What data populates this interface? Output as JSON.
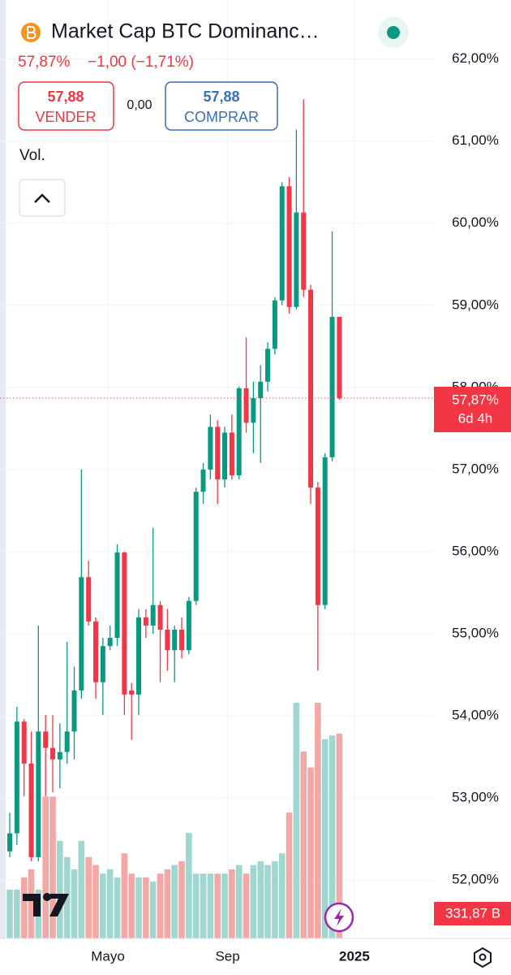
{
  "header": {
    "title": "Market Cap BTC Dominanc…",
    "price": "57,87%",
    "change": "−1,00 (−1,71%)"
  },
  "trade": {
    "sell": {
      "price": "57,88",
      "label": "VENDER"
    },
    "spread": "0,00",
    "buy": {
      "price": "57,88",
      "label": "COMPRAR"
    }
  },
  "chart_data": {
    "type": "candlestick",
    "volume_title": "Vol.",
    "categories": [
      null,
      null,
      null,
      null,
      null,
      null,
      null,
      null,
      null,
      null,
      null,
      null,
      null,
      null,
      null,
      null,
      null,
      null,
      null,
      null,
      null,
      null,
      null,
      null,
      null,
      null,
      null,
      null,
      null,
      null,
      null,
      null,
      null,
      null,
      null,
      null,
      null,
      null,
      null,
      null,
      null,
      null,
      null,
      null,
      null,
      null,
      null
    ],
    "open": [
      52.35,
      52.57,
      53.93,
      53.42,
      52.28,
      53.81,
      53.61,
      53.47,
      53.56,
      53.81,
      54.31,
      55.69,
      55.15,
      54.41,
      54.85,
      54.95,
      55.99,
      54.31,
      54.26,
      55.2,
      55.1,
      55.35,
      55.05,
      54.8,
      55.05,
      54.8,
      55.4,
      56.73,
      57.0,
      57.52,
      56.88,
      57.45,
      56.93,
      57.99,
      57.57,
      57.87,
      58.07,
      58.47,
      59.06,
      60.45,
      58.98,
      60.13,
      59.19,
      56.78,
      55.35,
      57.15,
      58.86
    ],
    "high": [
      52.82,
      54.11,
      53.96,
      53.81,
      55.1,
      54.01,
      54.01,
      53.91,
      54.9,
      54.6,
      57.0,
      55.89,
      55.2,
      54.95,
      55.1,
      56.09,
      56.0,
      54.4,
      55.3,
      55.3,
      56.29,
      55.4,
      55.3,
      55.1,
      55.2,
      55.45,
      56.78,
      57.08,
      57.67,
      57.6,
      57.52,
      57.67,
      58.01,
      58.61,
      58.07,
      58.27,
      58.55,
      59.1,
      60.5,
      60.56,
      61.14,
      61.51,
      59.25,
      56.85,
      57.2,
      59.9,
      58.86
    ],
    "low": [
      52.28,
      52.43,
      53.02,
      52.23,
      52.23,
      53.02,
      53.07,
      53.12,
      53.42,
      53.47,
      54.21,
      55.1,
      54.21,
      54.01,
      54.8,
      54.85,
      54.01,
      53.71,
      54.01,
      54.95,
      55.0,
      54.41,
      54.55,
      54.41,
      54.7,
      54.75,
      55.35,
      56.58,
      56.88,
      56.58,
      56.78,
      56.88,
      56.88,
      57.45,
      57.2,
      57.08,
      57.95,
      58.4,
      59.0,
      58.9,
      58.95,
      59.1,
      56.58,
      54.55,
      55.3,
      57.1,
      57.85
    ],
    "close": [
      52.57,
      53.93,
      53.42,
      52.28,
      53.81,
      53.61,
      53.47,
      53.56,
      53.81,
      54.31,
      55.69,
      55.15,
      54.41,
      54.85,
      54.95,
      55.99,
      54.26,
      54.26,
      55.2,
      55.1,
      55.35,
      55.05,
      54.8,
      55.05,
      54.8,
      55.4,
      56.73,
      57.0,
      57.52,
      56.88,
      57.45,
      56.93,
      57.99,
      57.57,
      57.87,
      58.07,
      58.47,
      59.06,
      60.45,
      58.98,
      60.13,
      59.19,
      56.78,
      55.35,
      57.15,
      58.86,
      57.87
    ],
    "volume": [
      79,
      79,
      99,
      112,
      79,
      230,
      230,
      158,
      132,
      112,
      158,
      132,
      119,
      105,
      112,
      99,
      138,
      105,
      99,
      99,
      92,
      105,
      112,
      119,
      125,
      171,
      105,
      105,
      105,
      105,
      105,
      112,
      119,
      105,
      119,
      125,
      119,
      125,
      138,
      204,
      382,
      303,
      277,
      382,
      323,
      329,
      331.87
    ],
    "up_color": "#089981",
    "down_color": "#f23645",
    "volume_up_color": "#9fd6cf",
    "volume_down_color": "#f4a8a6",
    "ylim": [
      51.29,
      62.56
    ],
    "yticks": [
      {
        "value": 52,
        "label": "52,00%"
      },
      {
        "value": 53,
        "label": "53,00%"
      },
      {
        "value": 54,
        "label": "54,00%"
      },
      {
        "value": 55,
        "label": "55,00%"
      },
      {
        "value": 56,
        "label": "56,00%"
      },
      {
        "value": 57,
        "label": "57,00%"
      },
      {
        "value": 58,
        "label": "58,00%"
      },
      {
        "value": 59,
        "label": "59,00%"
      },
      {
        "value": 60,
        "label": "60,00%"
      },
      {
        "value": 61,
        "label": "61,00%"
      },
      {
        "value": 62,
        "label": "62,00%"
      }
    ],
    "y2lim": [
      0,
      1500
    ],
    "xlim": [
      -1.36,
      59.2
    ],
    "xticks": [
      {
        "value": 13.7,
        "label": "Mayo"
      },
      {
        "value": 30.4,
        "label": "Sep"
      },
      {
        "value": 48.1,
        "label": "2025"
      }
    ],
    "grid": true,
    "last_price": {
      "value": 57.87,
      "label": "57,87%"
    },
    "countdown": "6d 4h",
    "last_volume_label": "331,87 B"
  }
}
